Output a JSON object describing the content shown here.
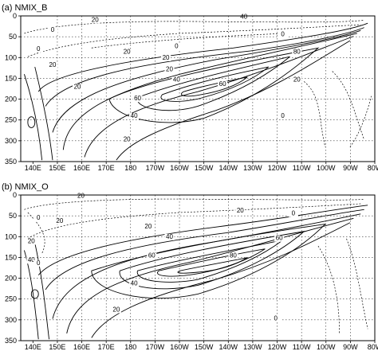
{
  "chart_data": [
    {
      "type": "contour",
      "title": "(a)  NMIX_B",
      "x_ticks": [
        "140E",
        "150E",
        "160E",
        "170E",
        "180",
        "170W",
        "160W",
        "150W",
        "140W",
        "130W",
        "120W",
        "110W",
        "100W",
        "90W",
        "80W"
      ],
      "y_ticks": [
        "0",
        "50",
        "100",
        "150",
        "200",
        "250",
        "300",
        "350"
      ],
      "xlim": [
        135,
        280
      ],
      "ylim": [
        350,
        0
      ],
      "grid": true,
      "contour_labels": [
        "40",
        "20",
        "0",
        "20",
        "0",
        "20",
        "20",
        "20",
        "40",
        "60",
        "80",
        "20",
        "40",
        "60",
        "20",
        "20",
        "0",
        "0",
        "0"
      ]
    },
    {
      "type": "contour",
      "title": "(b)  NMIX_O",
      "x_ticks": [
        "140E",
        "150E",
        "160E",
        "170E",
        "180",
        "170W",
        "160W",
        "150W",
        "140W",
        "130W",
        "120W",
        "110W",
        "100W",
        "90W",
        "80W"
      ],
      "y_ticks": [
        "0",
        "50",
        "100",
        "150",
        "200",
        "250",
        "300",
        "350"
      ],
      "xlim": [
        135,
        280
      ],
      "ylim": [
        350,
        0
      ],
      "grid": true,
      "contour_labels": [
        "20",
        "0",
        "20",
        "20",
        "20",
        "40",
        "20",
        "40",
        "60",
        "80",
        "60",
        "40",
        "20",
        "0",
        "0",
        "0"
      ]
    }
  ]
}
